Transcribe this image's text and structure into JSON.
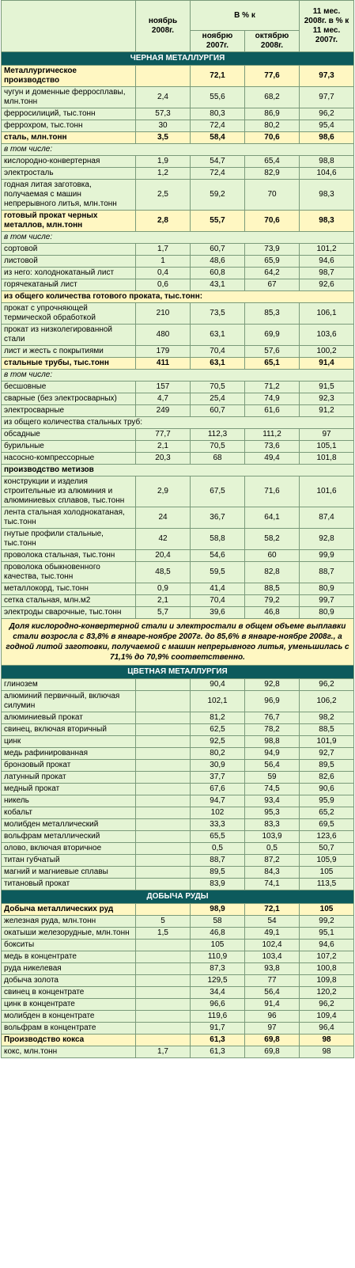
{
  "header": {
    "col_nov": "ноябрь 2008г.",
    "col_pct_group": "В % к",
    "col_nov_prev": "ноябрю 2007г.",
    "col_oct": "октябрю 2008г.",
    "col_11m": "11 мес. 2008г. в % к 11 мес. 2007г."
  },
  "sections": [
    {
      "title": "ЧЕРНАЯ МЕТАЛЛУРГИЯ",
      "rows": [
        {
          "label": "Металлургическое производство",
          "v1": "",
          "v2": "72,1",
          "v3": "77,6",
          "v4": "97,3",
          "type": "highlight"
        },
        {
          "label": "чугун и доменные ферросплавы, млн.тонн",
          "v1": "2,4",
          "v2": "55,6",
          "v3": "68,2",
          "v4": "97,7"
        },
        {
          "label": "ферросилиций, тыс.тонн",
          "v1": "57,3",
          "v2": "80,3",
          "v3": "86,9",
          "v4": "96,2"
        },
        {
          "label": "феррохром, тыс.тонн",
          "v1": "30",
          "v2": "72,4",
          "v3": "80,2",
          "v4": "95,4"
        },
        {
          "label": "сталь, млн.тонн",
          "v1": "3,5",
          "v2": "58,4",
          "v3": "70,6",
          "v4": "98,6",
          "type": "highlight"
        },
        {
          "label": "в том числе:",
          "type": "sub"
        },
        {
          "label": "кислородно-конвертерная",
          "v1": "1,9",
          "v2": "54,7",
          "v3": "65,4",
          "v4": "98,8"
        },
        {
          "label": "электросталь",
          "v1": "1,2",
          "v2": "72,4",
          "v3": "82,9",
          "v4": "104,6"
        },
        {
          "label": "годная литая заготовка, получаемая с машин непрерывного литья, млн.тонн",
          "v1": "2,5",
          "v2": "59,2",
          "v3": "70",
          "v4": "98,3"
        },
        {
          "label": "готовый прокат черных металлов, млн.тонн",
          "v1": "2,8",
          "v2": "55,7",
          "v3": "70,6",
          "v4": "98,3",
          "type": "highlight"
        },
        {
          "label": "в том числе:",
          "type": "sub"
        },
        {
          "label": "сортовой",
          "v1": "1,7",
          "v2": "60,7",
          "v3": "73,9",
          "v4": "101,2"
        },
        {
          "label": "листовой",
          "v1": "1",
          "v2": "48,6",
          "v3": "65,9",
          "v4": "94,6"
        },
        {
          "label": "из него: холоднокатаный лист",
          "v1": "0,4",
          "v2": "60,8",
          "v3": "64,2",
          "v4": "98,7"
        },
        {
          "label": "горячекатаный лист",
          "v1": "0,6",
          "v2": "43,1",
          "v3": "67",
          "v4": "92,6"
        },
        {
          "label": "из общего количества готового проката, тыс.тонн:",
          "type": "highlight-span"
        },
        {
          "label": "прокат с упрочняющей термической обработкой",
          "v1": "210",
          "v2": "73,5",
          "v3": "85,3",
          "v4": "106,1"
        },
        {
          "label": "прокат из низколегированной стали",
          "v1": "480",
          "v2": "63,1",
          "v3": "69,9",
          "v4": "103,6"
        },
        {
          "label": "лист и жесть с покрытиями",
          "v1": "179",
          "v2": "70,4",
          "v3": "57,6",
          "v4": "100,2"
        },
        {
          "label": "стальные трубы, тыс.тонн",
          "v1": "411",
          "v2": "63,1",
          "v3": "65,1",
          "v4": "91,4",
          "type": "highlight"
        },
        {
          "label": "в том числе:",
          "type": "sub"
        },
        {
          "label": "бесшовные",
          "v1": "157",
          "v2": "70,5",
          "v3": "71,2",
          "v4": "91,5"
        },
        {
          "label": "сварные (без электросварных)",
          "v1": "4,7",
          "v2": "25,4",
          "v3": "74,9",
          "v4": "92,3"
        },
        {
          "label": "электросварные",
          "v1": "249",
          "v2": "60,7",
          "v3": "61,6",
          "v4": "91,2"
        },
        {
          "label": "из общего количества стальных труб:",
          "type": "span"
        },
        {
          "label": "обсадные",
          "v1": "77,7",
          "v2": "112,3",
          "v3": "111,2",
          "v4": "97"
        },
        {
          "label": "бурильные",
          "v1": "2,1",
          "v2": "70,5",
          "v3": "73,6",
          "v4": "105,1"
        },
        {
          "label": "насосно-компрессорные",
          "v1": "20,3",
          "v2": "68",
          "v3": "49,4",
          "v4": "101,8"
        },
        {
          "label": "производство метизов",
          "type": "bold-span"
        },
        {
          "label": "конструкции и изделия строительные из алюминия и алюминиевых сплавов, тыс.тонн",
          "v1": "2,9",
          "v2": "67,5",
          "v3": "71,6",
          "v4": "101,6"
        },
        {
          "label": "лента стальная холоднокатаная, тыс.тонн",
          "v1": "24",
          "v2": "36,7",
          "v3": "64,1",
          "v4": "87,4"
        },
        {
          "label": "гнутые профили стальные, тыс.тонн",
          "v1": "42",
          "v2": "58,8",
          "v3": "58,2",
          "v4": "92,8"
        },
        {
          "label": "проволока стальная, тыс.тонн",
          "v1": "20,4",
          "v2": "54,6",
          "v3": "60",
          "v4": "99,9"
        },
        {
          "label": "проволока обыкновенного качества, тыс.тонн",
          "v1": "48,5",
          "v2": "59,5",
          "v3": "82,8",
          "v4": "88,7"
        },
        {
          "label": "металлокорд, тыс.тонн",
          "v1": "0,9",
          "v2": "41,4",
          "v3": "88,5",
          "v4": "80,9"
        },
        {
          "label": "сетка стальная, млн.м2",
          "v1": "2,1",
          "v2": "70,4",
          "v3": "79,2",
          "v4": "99,7"
        },
        {
          "label": "электроды сварочные, тыс.тонн",
          "v1": "5,7",
          "v2": "39,6",
          "v3": "46,8",
          "v4": "80,9"
        }
      ],
      "note": "Доля кислородно-конвертерной стали и электростали в общем объеме выплавки стали возросла с 83,8% в январе-ноябре 2007г. до 85,6% в январе-ноябре 2008г., а годной литой заготовки, получаемой с машин непрерывного литья, уменьшилась с 71,1% до 70,9% соответственно."
    },
    {
      "title": "ЦВЕТНАЯ МЕТАЛЛУРГИЯ",
      "rows": [
        {
          "label": "глинозем",
          "v1": "",
          "v2": "90,4",
          "v3": "92,8",
          "v4": "96,2"
        },
        {
          "label": "алюминий первичный, включая силумин",
          "v1": "",
          "v2": "102,1",
          "v3": "96,9",
          "v4": "106,2"
        },
        {
          "label": "алюминиевый прокат",
          "v1": "",
          "v2": "81,2",
          "v3": "76,7",
          "v4": "98,2"
        },
        {
          "label": "свинец, включая вторичный",
          "v1": "",
          "v2": "62,5",
          "v3": "78,2",
          "v4": "88,5"
        },
        {
          "label": "цинк",
          "v1": "",
          "v2": "92,5",
          "v3": "98,8",
          "v4": "101,9"
        },
        {
          "label": "медь рафинированная",
          "v1": "",
          "v2": "80,2",
          "v3": "94,9",
          "v4": "92,7"
        },
        {
          "label": "бронзовый прокат",
          "v1": "",
          "v2": "30,9",
          "v3": "56,4",
          "v4": "89,5"
        },
        {
          "label": "латунный прокат",
          "v1": "",
          "v2": "37,7",
          "v3": "59",
          "v4": "82,6"
        },
        {
          "label": "медный прокат",
          "v1": "",
          "v2": "67,6",
          "v3": "74,5",
          "v4": "90,6"
        },
        {
          "label": "никель",
          "v1": "",
          "v2": "94,7",
          "v3": "93,4",
          "v4": "95,9"
        },
        {
          "label": "кобальт",
          "v1": "",
          "v2": "102",
          "v3": "95,3",
          "v4": "65,2"
        },
        {
          "label": "молибден металлический",
          "v1": "",
          "v2": "33,3",
          "v3": "83,3",
          "v4": "69,5"
        },
        {
          "label": "вольфрам металлический",
          "v1": "",
          "v2": "65,5",
          "v3": "103,9",
          "v4": "123,6"
        },
        {
          "label": "олово, включая вторичное",
          "v1": "",
          "v2": "0,5",
          "v3": "0,5",
          "v4": "50,7"
        },
        {
          "label": "титан губчатый",
          "v1": "",
          "v2": "88,7",
          "v3": "87,2",
          "v4": "105,9"
        },
        {
          "label": "магний и магниевые сплавы",
          "v1": "",
          "v2": "89,5",
          "v3": "84,3",
          "v4": "105"
        },
        {
          "label": "титановый прокат",
          "v1": "",
          "v2": "83,9",
          "v3": "74,1",
          "v4": "113,5"
        }
      ]
    },
    {
      "title": "ДОБЫЧА РУДЫ",
      "rows": [
        {
          "label": "Добыча металлических руд",
          "v1": "",
          "v2": "98,9",
          "v3": "72,1",
          "v4": "105",
          "type": "highlight"
        },
        {
          "label": "железная руда, млн.тонн",
          "v1": "5",
          "v2": "58",
          "v3": "54",
          "v4": "99,2"
        },
        {
          "label": "окатыши железорудные, млн.тонн",
          "v1": "1,5",
          "v2": "46,8",
          "v3": "49,1",
          "v4": "95,1"
        },
        {
          "label": "бокситы",
          "v1": "",
          "v2": "105",
          "v3": "102,4",
          "v4": "94,6"
        },
        {
          "label": "медь в концентрате",
          "v1": "",
          "v2": "110,9",
          "v3": "103,4",
          "v4": "107,2"
        },
        {
          "label": "руда никелевая",
          "v1": "",
          "v2": "87,3",
          "v3": "93,8",
          "v4": "100,8"
        },
        {
          "label": "добыча золота",
          "v1": "",
          "v2": "129,5",
          "v3": "77",
          "v4": "109,8"
        },
        {
          "label": "свинец в концентрате",
          "v1": "",
          "v2": "34,4",
          "v3": "56,4",
          "v4": "120,2"
        },
        {
          "label": "цинк в концентрате",
          "v1": "",
          "v2": "96,6",
          "v3": "91,4",
          "v4": "96,2"
        },
        {
          "label": "молибден в концентрате",
          "v1": "",
          "v2": "119,6",
          "v3": "96",
          "v4": "109,4"
        },
        {
          "label": "вольфрам в концентрате",
          "v1": "",
          "v2": "91,7",
          "v3": "97",
          "v4": "96,4"
        },
        {
          "label": "Производство кокса",
          "v1": "",
          "v2": "61,3",
          "v3": "69,8",
          "v4": "98",
          "type": "highlight"
        },
        {
          "label": "кокс, млн.тонн",
          "v1": "1,7",
          "v2": "61,3",
          "v3": "69,8",
          "v4": "98"
        }
      ]
    }
  ]
}
